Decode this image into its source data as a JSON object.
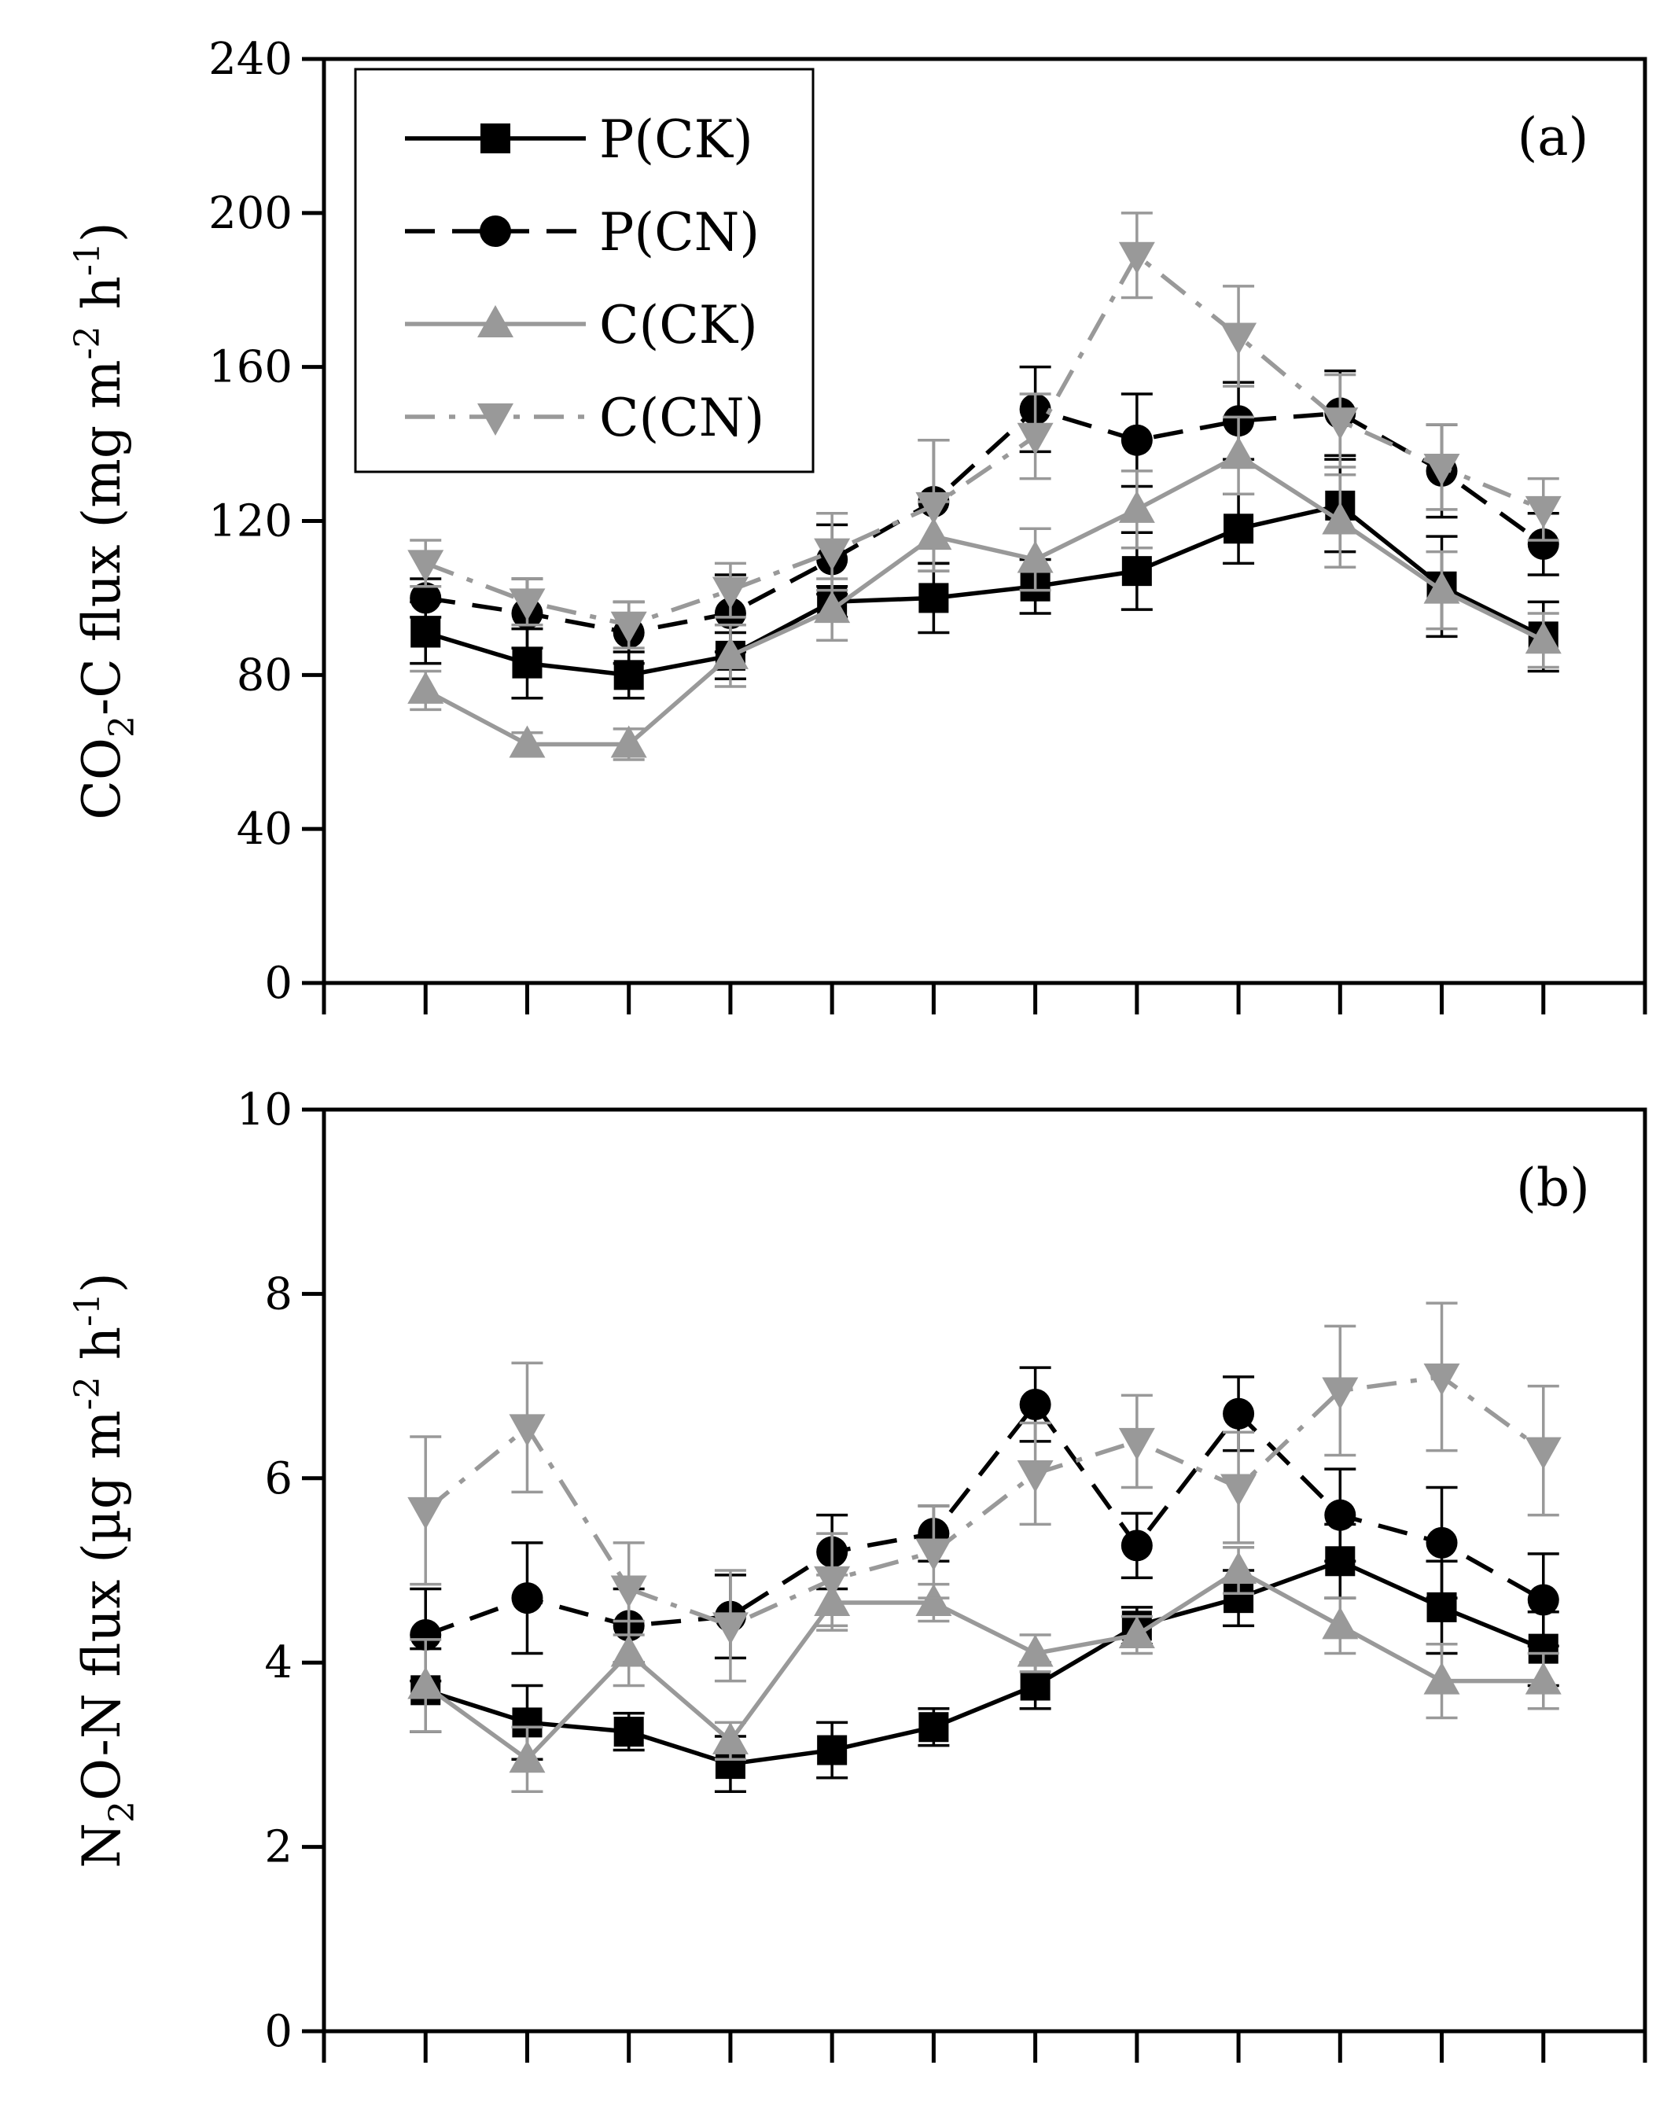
{
  "figure": {
    "panels": [
      "a",
      "b"
    ]
  },
  "legend": {
    "entries": [
      {
        "label": "P(CK)",
        "series_index": 0
      },
      {
        "label": "P(CN)",
        "series_index": 1
      },
      {
        "label": "C(CK)",
        "series_index": 2
      },
      {
        "label": "C(CN)",
        "series_index": 3
      }
    ],
    "placement": "top-left"
  },
  "series_styles": [
    {
      "color": "#000000",
      "marker": "square",
      "dash": "solid"
    },
    {
      "color": "#000000",
      "marker": "circle",
      "dash": "dashed"
    },
    {
      "color": "#999999",
      "marker": "triangle-up",
      "dash": "solid"
    },
    {
      "color": "#999999",
      "marker": "triangle-down",
      "dash": "dash-dot"
    }
  ],
  "chart_data": [
    {
      "type": "line",
      "panel_label": "(a)",
      "ylabel_main": "CO",
      "ylabel_sub": "2",
      "ylabel_rest": "-C flux (mg m",
      "ylabel_sup1": "-2",
      "ylabel_mid": " h",
      "ylabel_sup2": "-1",
      "ylabel_end": ")",
      "ylim": [
        0,
        240
      ],
      "yticks": [
        "0",
        "40",
        "80",
        "120",
        "160",
        "200",
        "240"
      ],
      "yticks_values": [
        0,
        40,
        80,
        120,
        160,
        200,
        240
      ],
      "x": [
        1,
        2,
        3,
        4,
        5,
        6,
        7,
        8,
        9,
        10,
        11,
        12
      ],
      "xtick_labels": [],
      "grid": false,
      "series": [
        {
          "name": "P(CK)",
          "values": [
            91,
            83,
            80,
            85,
            99,
            100,
            103,
            107,
            118,
            124,
            103,
            90
          ],
          "errors": [
            8,
            9,
            6,
            6,
            4,
            9,
            7,
            10,
            9,
            12,
            13,
            9
          ]
        },
        {
          "name": "P(CN)",
          "values": [
            100,
            96,
            91,
            96,
            110,
            125,
            149,
            141,
            146,
            148,
            133,
            114
          ],
          "errors": [
            5,
            9,
            8,
            10,
            9,
            16,
            11,
            12,
            10,
            11,
            12,
            8
          ]
        },
        {
          "name": "C(CK)",
          "values": [
            76,
            62,
            62,
            85,
            97,
            116,
            110,
            123,
            137,
            120,
            102,
            89
          ],
          "errors": [
            5,
            3,
            4,
            8,
            8,
            9,
            8,
            10,
            10,
            12,
            10,
            7
          ]
        },
        {
          "name": "C(CN)",
          "values": [
            109,
            99,
            93,
            102,
            112,
            124,
            142,
            189,
            168,
            146,
            134,
            123
          ],
          "errors": [
            6,
            6,
            6,
            7,
            10,
            17,
            11,
            11,
            13,
            12,
            11,
            8
          ]
        }
      ]
    },
    {
      "type": "line",
      "panel_label": "(b)",
      "ylabel_main": "N",
      "ylabel_sub": "2",
      "ylabel_rest": "O-N flux (µg m",
      "ylabel_sup1": "-2",
      "ylabel_mid": " h",
      "ylabel_sup2": "-1",
      "ylabel_end": ")",
      "ylim": [
        0,
        10
      ],
      "yticks": [
        "0",
        "2",
        "4",
        "6",
        "8",
        "10"
      ],
      "yticks_values": [
        0,
        2,
        4,
        6,
        8,
        10
      ],
      "x": [
        1,
        2,
        3,
        4,
        5,
        6,
        7,
        8,
        9,
        10,
        11,
        12
      ],
      "xtick_labels": [],
      "grid": false,
      "series": [
        {
          "name": "P(CK)",
          "values": [
            3.7,
            3.35,
            3.25,
            2.9,
            3.05,
            3.3,
            3.75,
            4.4,
            4.7,
            5.1,
            4.6,
            4.15
          ],
          "errors": [
            0.45,
            0.4,
            0.2,
            0.3,
            0.3,
            0.2,
            0.25,
            0.2,
            0.3,
            0.4,
            0.5,
            0.4
          ]
        },
        {
          "name": "P(CN)",
          "values": [
            4.3,
            4.7,
            4.4,
            4.5,
            5.2,
            5.4,
            6.8,
            5.27,
            6.7,
            5.6,
            5.3,
            4.68
          ],
          "errors": [
            0.5,
            0.6,
            0.4,
            0.45,
            0.4,
            0.3,
            0.4,
            0.35,
            0.4,
            0.5,
            0.6,
            0.5
          ]
        },
        {
          "name": "C(CK)",
          "values": [
            3.75,
            2.95,
            4.1,
            3.15,
            4.65,
            4.65,
            4.1,
            4.3,
            5.0,
            4.4,
            3.8,
            3.8
          ],
          "errors": [
            0.5,
            0.35,
            0.35,
            0.2,
            0.3,
            0.2,
            0.2,
            0.2,
            0.25,
            0.3,
            0.4,
            0.3
          ]
        },
        {
          "name": "C(CN)",
          "values": [
            5.65,
            6.55,
            4.8,
            4.4,
            4.9,
            5.2,
            6.05,
            6.4,
            5.9,
            6.95,
            7.1,
            6.3
          ],
          "errors": [
            0.8,
            0.7,
            0.5,
            0.6,
            0.5,
            0.5,
            0.55,
            0.5,
            0.6,
            0.7,
            0.8,
            0.7
          ]
        }
      ]
    }
  ]
}
